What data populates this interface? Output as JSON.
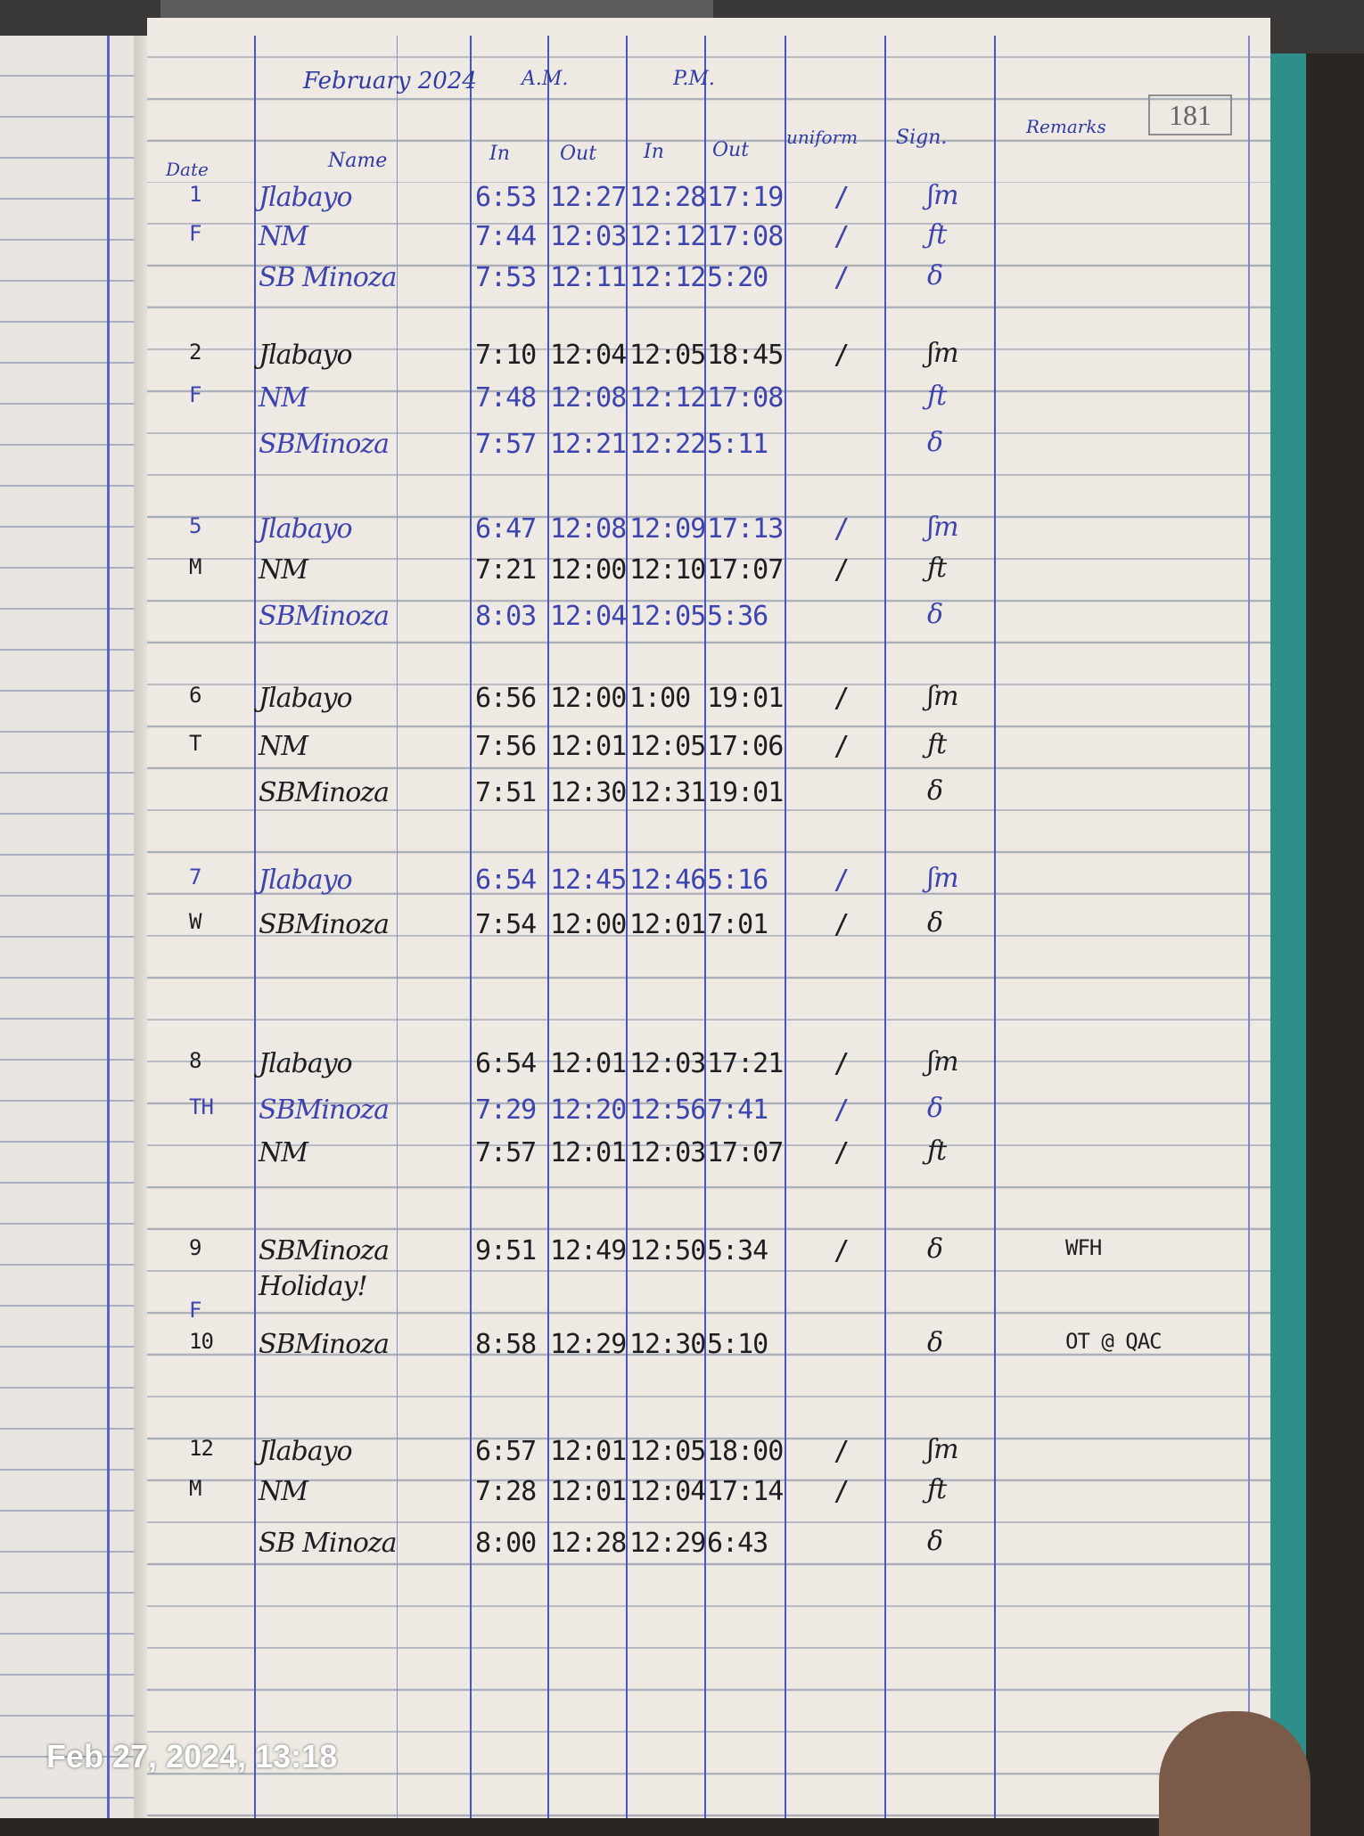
{
  "log": {
    "page_number": "181",
    "month": "February 2024",
    "am_label": "A.M.",
    "pm_label": "P.M.",
    "columns": {
      "date": "Date",
      "name": "Name",
      "am_in": "In",
      "am_out": "Out",
      "pm_in": "In",
      "pm_out": "Out",
      "uniform": "uniform",
      "sign": "Sign.",
      "remarks": "Remarks"
    },
    "entries": [
      {
        "date": "1",
        "name": "Jlabayo",
        "am_in": "6:53",
        "am_out": "12:27",
        "pm_in": "12:28",
        "pm_out": "17:19",
        "uniform": "/",
        "ink": "blue"
      },
      {
        "date": "F",
        "name": "NM",
        "am_in": "7:44",
        "am_out": "12:03",
        "pm_in": "12:12",
        "pm_out": "17:08",
        "uniform": "/",
        "ink": "blue"
      },
      {
        "date": "",
        "name": "SB Minoza",
        "am_in": "7:53",
        "am_out": "12:11",
        "pm_in": "12:12",
        "pm_out": "5:20",
        "uniform": "/",
        "ink": "blue"
      },
      {
        "date": "2",
        "name": "Jlabayo",
        "am_in": "7:10",
        "am_out": "12:04",
        "pm_in": "12:05",
        "pm_out": "18:45",
        "uniform": "/",
        "ink": "black"
      },
      {
        "date": "F",
        "name": "NM",
        "am_in": "7:48",
        "am_out": "12:08",
        "pm_in": "12:12",
        "pm_out": "17:08",
        "uniform": "",
        "ink": "blue"
      },
      {
        "date": "",
        "name": "SBMinoza",
        "am_in": "7:57",
        "am_out": "12:21",
        "pm_in": "12:22",
        "pm_out": "5:11",
        "uniform": "",
        "ink": "blue"
      },
      {
        "date": "5",
        "name": "Jlabayo",
        "am_in": "6:47",
        "am_out": "12:08",
        "pm_in": "12:09",
        "pm_out": "17:13",
        "uniform": "/",
        "ink": "blue"
      },
      {
        "date": "M",
        "name": "NM",
        "am_in": "7:21",
        "am_out": "12:00",
        "pm_in": "12:10",
        "pm_out": "17:07",
        "uniform": "/",
        "ink": "black"
      },
      {
        "date": "",
        "name": "SBMinoza",
        "am_in": "8:03",
        "am_out": "12:04",
        "pm_in": "12:05",
        "pm_out": "5:36",
        "uniform": "",
        "ink": "blue"
      },
      {
        "date": "6",
        "name": "Jlabayo",
        "am_in": "6:56",
        "am_out": "12:00",
        "pm_in": "1:00",
        "pm_out": "19:01",
        "uniform": "/",
        "ink": "black"
      },
      {
        "date": "T",
        "name": "NM",
        "am_in": "7:56",
        "am_out": "12:01",
        "pm_in": "12:05",
        "pm_out": "17:06",
        "uniform": "/",
        "ink": "black"
      },
      {
        "date": "",
        "name": "SBMinoza",
        "am_in": "7:51",
        "am_out": "12:30",
        "pm_in": "12:31",
        "pm_out": "19:01",
        "uniform": "",
        "ink": "black"
      },
      {
        "date": "7",
        "name": "Jlabayo",
        "am_in": "6:54",
        "am_out": "12:45",
        "pm_in": "12:46",
        "pm_out": "5:16",
        "uniform": "/",
        "ink": "blue"
      },
      {
        "date": "W",
        "name": "SBMinoza",
        "am_in": "7:54",
        "am_out": "12:00",
        "pm_in": "12:01",
        "pm_out": "7:01",
        "uniform": "/",
        "ink": "black"
      },
      {
        "date": "8",
        "name": "Jlabayo",
        "am_in": "6:54",
        "am_out": "12:01",
        "pm_in": "12:03",
        "pm_out": "17:21",
        "uniform": "/",
        "ink": "black"
      },
      {
        "date": "TH",
        "name": "SBMinoza",
        "am_in": "7:29",
        "am_out": "12:20",
        "pm_in": "12:56",
        "pm_out": "7:41",
        "uniform": "/",
        "ink": "blue"
      },
      {
        "date": "",
        "name": "NM",
        "am_in": "7:57",
        "am_out": "12:01",
        "pm_in": "12:03",
        "pm_out": "17:07",
        "uniform": "/",
        "ink": "black"
      },
      {
        "date": "9",
        "name": "SBMinoza",
        "am_in": "9:51",
        "am_out": "12:49",
        "pm_in": "12:50",
        "pm_out": "5:34",
        "uniform": "/",
        "remarks": "WFH",
        "ink": "black"
      },
      {
        "date": "",
        "name": "Holiday!",
        "am_in": "",
        "am_out": "",
        "pm_in": "",
        "pm_out": "",
        "uniform": "",
        "ink": "black"
      },
      {
        "date": "F",
        "name": "",
        "am_in": "",
        "am_out": "",
        "pm_in": "",
        "pm_out": "",
        "uniform": "",
        "ink": "blue"
      },
      {
        "date": "10",
        "name": "SBMinoza",
        "am_in": "8:58",
        "am_out": "12:29",
        "pm_in": "12:30",
        "pm_out": "5:10",
        "uniform": "",
        "remarks": "OT @ QAC",
        "ink": "black"
      },
      {
        "date": "12",
        "name": "Jlabayo",
        "am_in": "6:57",
        "am_out": "12:01",
        "pm_in": "12:05",
        "pm_out": "18:00",
        "uniform": "/",
        "ink": "black"
      },
      {
        "date": "M",
        "name": "NM",
        "am_in": "7:28",
        "am_out": "12:01",
        "pm_in": "12:04",
        "pm_out": "17:14",
        "uniform": "/",
        "ink": "black"
      },
      {
        "date": "",
        "name": "SB Minoza",
        "am_in": "8:00",
        "am_out": "12:28",
        "pm_in": "12:29",
        "pm_out": "6:43",
        "uniform": "",
        "ink": "black"
      }
    ]
  },
  "photo_timestamp": "Feb 27, 2024, 13:18",
  "colors": {
    "blue_ink": "#3d44b0",
    "black_ink": "#1e1e22",
    "paper": "#eeeae3",
    "rule_line": "#4a55c4"
  }
}
